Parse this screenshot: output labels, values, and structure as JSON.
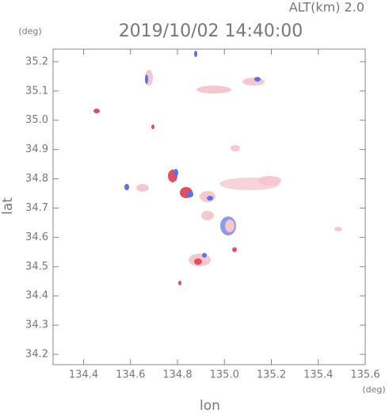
{
  "chart_data": {
    "type": "map",
    "title": "2019/10/02 14:40:00",
    "subtitle": "ALT(km) 2.0",
    "x_label": "lon",
    "y_label": "lat",
    "x_unit": "(deg)",
    "y_unit": "(deg)",
    "xlim": [
      134.27,
      135.6
    ],
    "ylim": [
      34.165,
      35.243
    ],
    "xticks": [
      134.4,
      134.6,
      134.8,
      {
        "value": 135.0,
        "label": "135.0"
      },
      135.2,
      135.4,
      135.6
    ],
    "yticks": [
      34.2,
      34.3,
      34.4,
      34.5,
      34.6,
      34.7,
      34.8,
      34.9,
      {
        "value": 35.0,
        "label": "35.0"
      },
      35.1,
      35.2
    ]
  }
}
